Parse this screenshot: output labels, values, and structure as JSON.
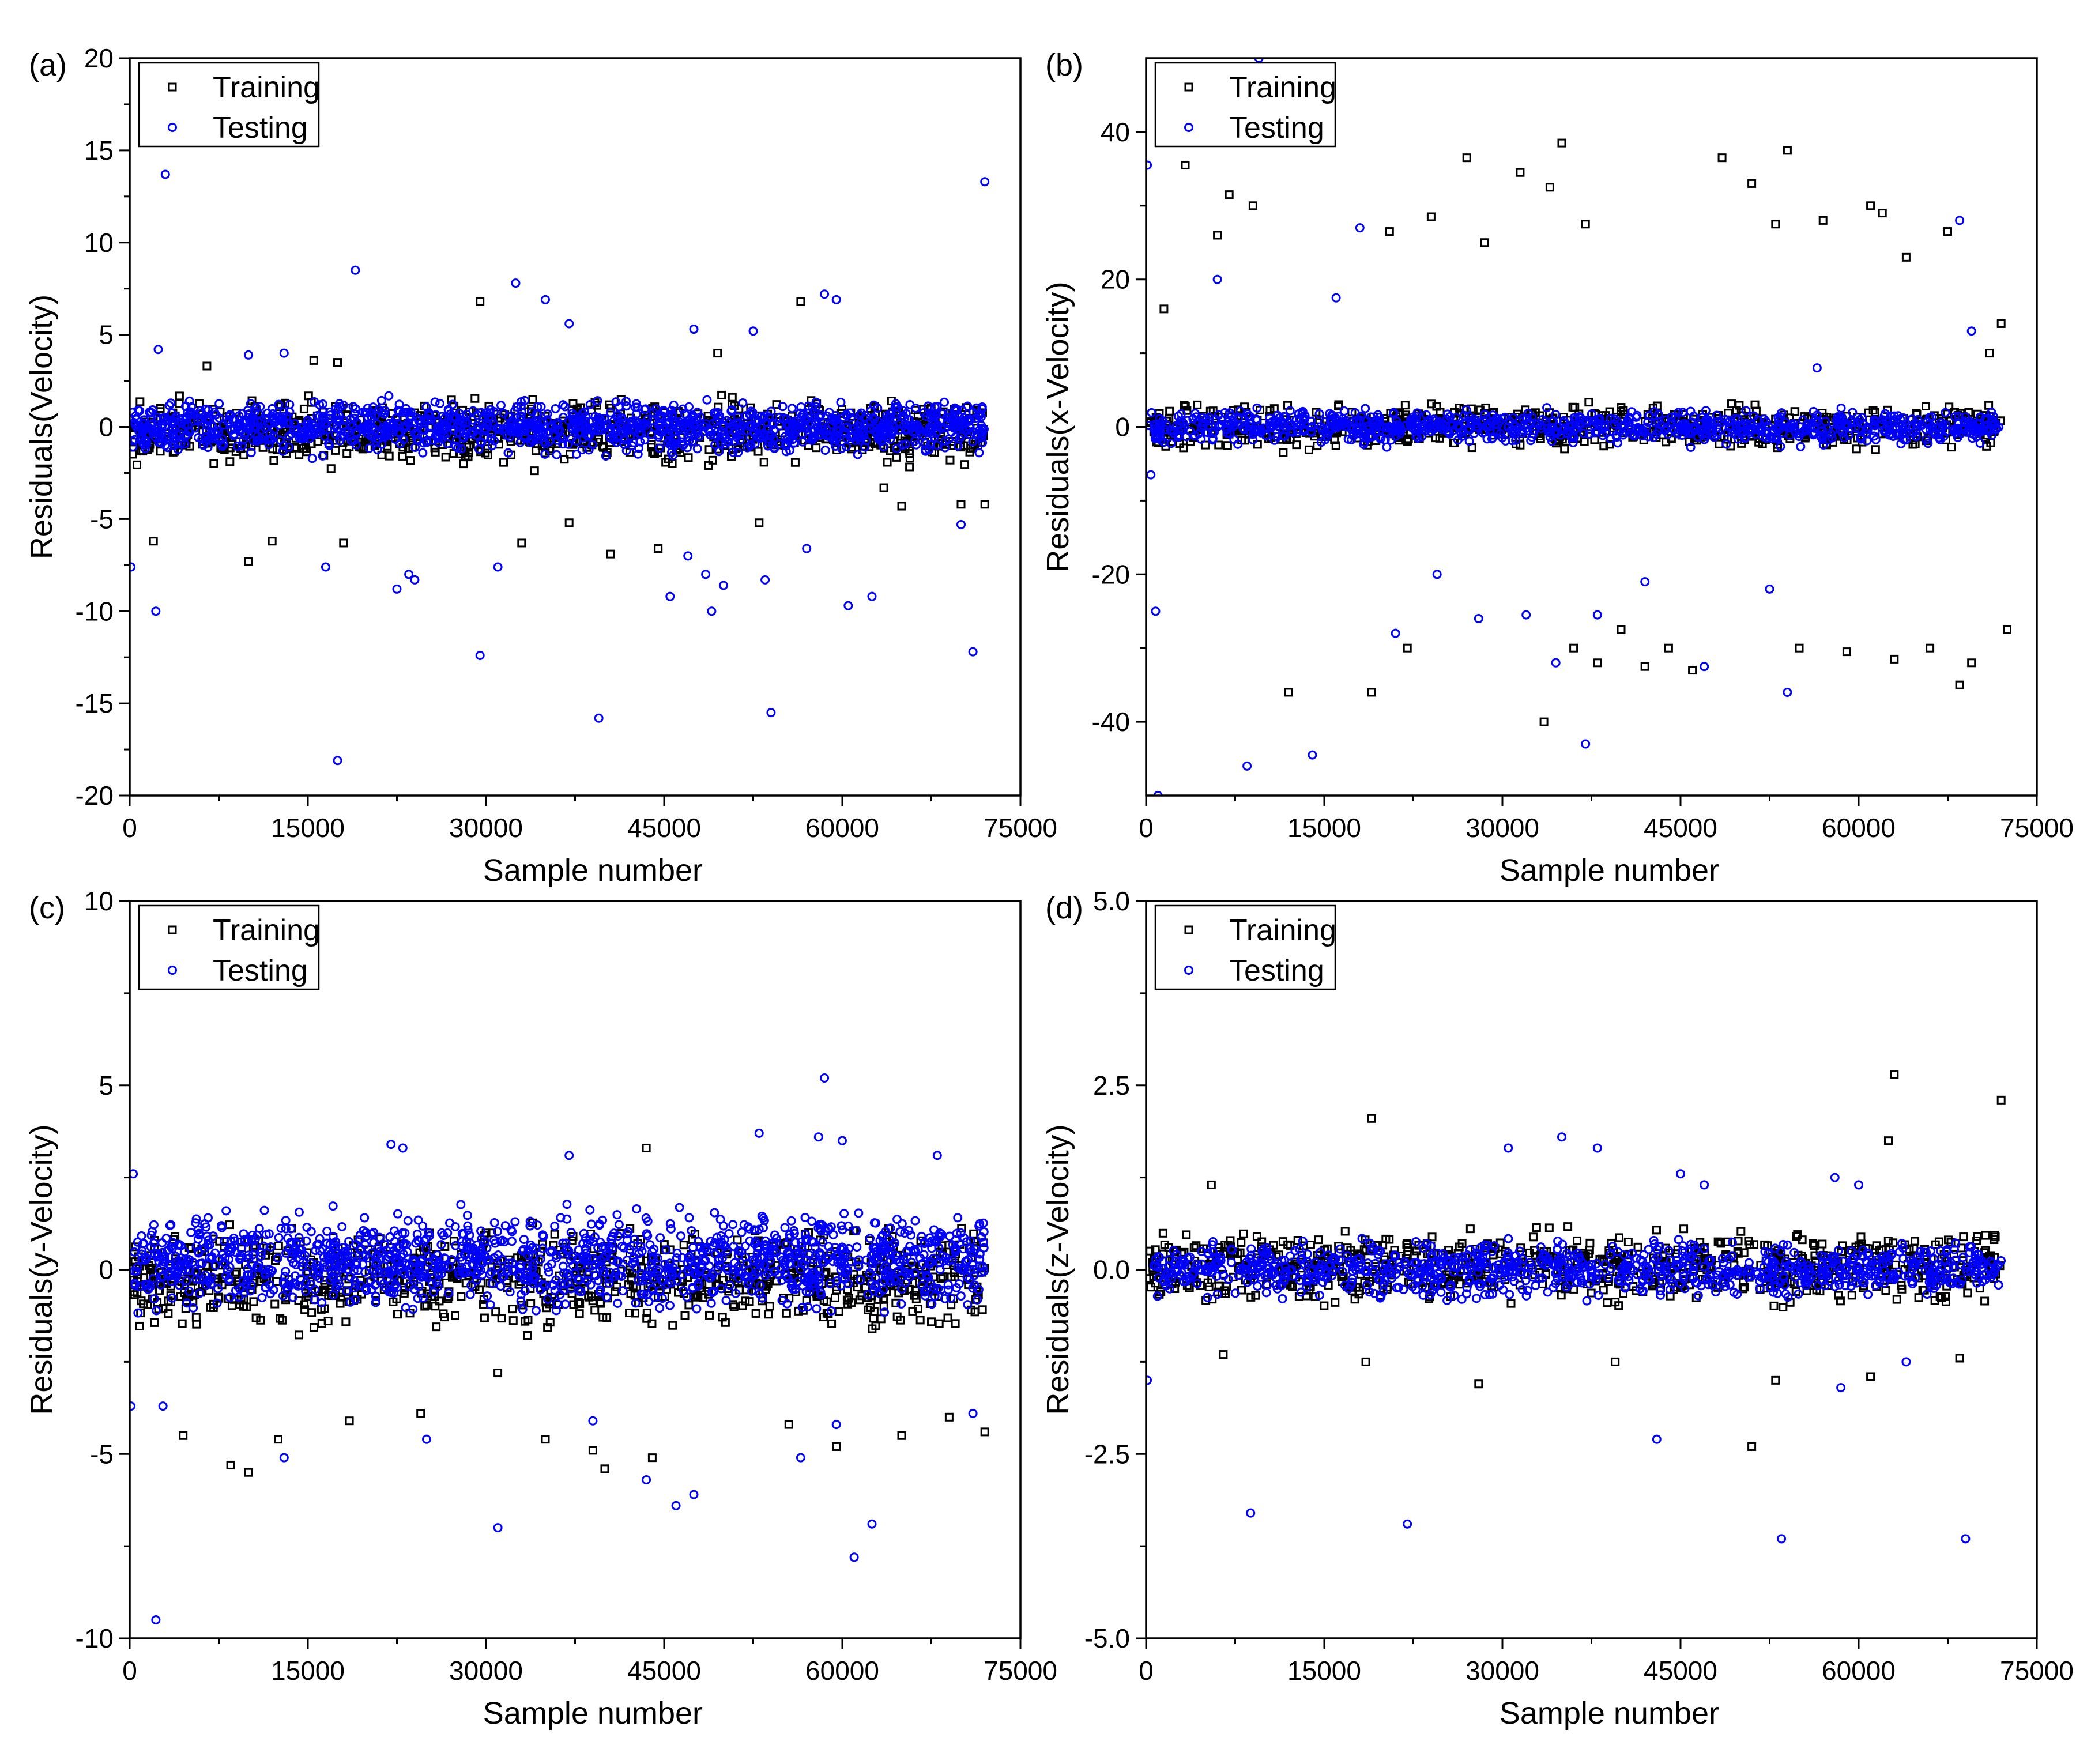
{
  "figure": {
    "marker_colors": {
      "training": "#000000",
      "testing": "#0000ff"
    }
  },
  "chart_data": [
    {
      "panel": "(a)",
      "type": "scatter",
      "xlabel": "Sample number",
      "ylabel": "Residuals(Velocity)",
      "xlim": [
        0,
        75000
      ],
      "ylim": [
        -20,
        20
      ],
      "xticks": [
        "0",
        "15000",
        "30000",
        "45000",
        "60000",
        "75000"
      ],
      "yticks": [
        "-20",
        "-15",
        "-10",
        "-5",
        "0",
        "5",
        "10",
        "15",
        "20"
      ],
      "legend": {
        "placement": "top-left",
        "entries": [
          "Training",
          "Testing"
        ]
      },
      "series": [
        {
          "name": "Training",
          "marker": "square",
          "color": "#000000",
          "band": [
            -2.5,
            2.0
          ],
          "n_band": 900,
          "seed": 11,
          "outliers": [
            [
              2000,
              -6.2
            ],
            [
              6500,
              3.3
            ],
            [
              10000,
              -7.3
            ],
            [
              12000,
              -6.2
            ],
            [
              15500,
              3.6
            ],
            [
              17500,
              3.5
            ],
            [
              18000,
              -6.3
            ],
            [
              29500,
              6.8
            ],
            [
              33000,
              -6.3
            ],
            [
              37000,
              -5.2
            ],
            [
              40500,
              -6.9
            ],
            [
              44500,
              -6.6
            ],
            [
              49500,
              4.0
            ],
            [
              53000,
              -5.2
            ],
            [
              56500,
              6.8
            ],
            [
              63500,
              -3.3
            ],
            [
              65000,
              -4.3
            ],
            [
              70000,
              -4.2
            ],
            [
              72000,
              -4.2
            ]
          ]
        },
        {
          "name": "Testing",
          "marker": "circle",
          "color": "#0000ff",
          "band": [
            -1.8,
            1.8
          ],
          "n_band": 1300,
          "seed": 23,
          "outliers": [
            [
              100,
              -7.6
            ],
            [
              2200,
              -10.0
            ],
            [
              2400,
              4.2
            ],
            [
              3000,
              13.7
            ],
            [
              10000,
              3.9
            ],
            [
              13000,
              4.0
            ],
            [
              16500,
              -7.6
            ],
            [
              17500,
              -18.1
            ],
            [
              19000,
              8.5
            ],
            [
              22500,
              -8.8
            ],
            [
              23500,
              -8.0
            ],
            [
              24000,
              -8.3
            ],
            [
              29500,
              -12.4
            ],
            [
              31000,
              -7.6
            ],
            [
              32500,
              7.8
            ],
            [
              35000,
              6.9
            ],
            [
              37000,
              5.6
            ],
            [
              39500,
              -15.8
            ],
            [
              45500,
              -9.2
            ],
            [
              47000,
              -7.0
            ],
            [
              47500,
              5.3
            ],
            [
              48500,
              -8.0
            ],
            [
              49000,
              -10.0
            ],
            [
              50000,
              -8.6
            ],
            [
              52500,
              5.2
            ],
            [
              53500,
              -8.3
            ],
            [
              54000,
              -15.5
            ],
            [
              57000,
              -6.6
            ],
            [
              58500,
              7.2
            ],
            [
              59500,
              6.9
            ],
            [
              60500,
              -9.7
            ],
            [
              62500,
              -9.2
            ],
            [
              70000,
              -5.3
            ],
            [
              71000,
              -12.2
            ],
            [
              72000,
              13.3
            ]
          ]
        }
      ]
    },
    {
      "panel": "(b)",
      "type": "scatter",
      "xlabel": "Sample number",
      "ylabel": "Residuals(x-Velocity)",
      "xlim": [
        0,
        75000
      ],
      "ylim": [
        -50,
        50
      ],
      "xticks": [
        "0",
        "15000",
        "30000",
        "45000",
        "60000",
        "75000"
      ],
      "yticks": [
        "-40",
        "-20",
        "0",
        "20",
        "40"
      ],
      "legend": {
        "placement": "top-left",
        "entries": [
          "Training",
          "Testing"
        ]
      },
      "series": [
        {
          "name": "Training",
          "marker": "square",
          "color": "#000000",
          "band": [
            -4,
            4
          ],
          "n_band": 700,
          "seed": 37,
          "outliers": [
            [
              1500,
              16
            ],
            [
              3300,
              35.5
            ],
            [
              6000,
              26
            ],
            [
              7000,
              31.5
            ],
            [
              9000,
              30
            ],
            [
              12000,
              -36
            ],
            [
              19000,
              -36
            ],
            [
              20500,
              26.5
            ],
            [
              22000,
              -30
            ],
            [
              24000,
              28.5
            ],
            [
              27000,
              36.5
            ],
            [
              28500,
              25
            ],
            [
              31500,
              34.5
            ],
            [
              33500,
              -40
            ],
            [
              34000,
              32.5
            ],
            [
              35000,
              38.5
            ],
            [
              36000,
              -30
            ],
            [
              37000,
              27.5
            ],
            [
              38000,
              -32
            ],
            [
              40000,
              -27.5
            ],
            [
              42000,
              -32.5
            ],
            [
              44000,
              -30
            ],
            [
              46000,
              -33
            ],
            [
              48500,
              36.5
            ],
            [
              51000,
              33
            ],
            [
              53000,
              27.5
            ],
            [
              54000,
              37.5
            ],
            [
              55000,
              -30
            ],
            [
              57000,
              28
            ],
            [
              59000,
              -30.5
            ],
            [
              61000,
              30
            ],
            [
              62000,
              29
            ],
            [
              63000,
              -31.5
            ],
            [
              64000,
              23
            ],
            [
              66000,
              -30
            ],
            [
              67500,
              26.5
            ],
            [
              68500,
              -35
            ],
            [
              69500,
              -32
            ],
            [
              71000,
              10
            ],
            [
              72000,
              14
            ],
            [
              72500,
              -27.5
            ]
          ]
        },
        {
          "name": "Testing",
          "marker": "circle",
          "color": "#0000ff",
          "band": [
            -3,
            3
          ],
          "n_band": 900,
          "seed": 41,
          "outliers": [
            [
              100,
              35.5
            ],
            [
              400,
              -6.5
            ],
            [
              800,
              -25
            ],
            [
              1000,
              -50
            ],
            [
              6000,
              20
            ],
            [
              8500,
              -46
            ],
            [
              9500,
              50
            ],
            [
              14000,
              -44.5
            ],
            [
              16000,
              17.5
            ],
            [
              18000,
              27
            ],
            [
              21000,
              -28
            ],
            [
              24500,
              -20
            ],
            [
              28000,
              -26
            ],
            [
              32000,
              -25.5
            ],
            [
              34500,
              -32
            ],
            [
              37000,
              -43
            ],
            [
              38000,
              -25.5
            ],
            [
              42000,
              -21
            ],
            [
              47000,
              -32.5
            ],
            [
              52500,
              -22
            ],
            [
              54000,
              -36
            ],
            [
              56500,
              8
            ],
            [
              68500,
              28
            ],
            [
              69500,
              13
            ]
          ]
        }
      ]
    },
    {
      "panel": "(c)",
      "type": "scatter",
      "xlabel": "Sample number",
      "ylabel": "Residuals(y-Velocity)",
      "xlim": [
        0,
        75000
      ],
      "ylim": [
        -10,
        10
      ],
      "xticks": [
        "0",
        "15000",
        "30000",
        "45000",
        "60000",
        "75000"
      ],
      "yticks": [
        "-10",
        "-5",
        "0",
        "5",
        "10"
      ],
      "legend": {
        "placement": "top-left",
        "entries": [
          "Training",
          "Testing"
        ]
      },
      "series": [
        {
          "name": "Training",
          "marker": "square",
          "color": "#000000",
          "band": [
            -2.0,
            1.5
          ],
          "n_band": 900,
          "seed": 53,
          "outliers": [
            [
              4500,
              -4.5
            ],
            [
              8500,
              -5.3
            ],
            [
              10000,
              -5.5
            ],
            [
              12500,
              -4.6
            ],
            [
              18500,
              -4.1
            ],
            [
              24500,
              -3.9
            ],
            [
              31000,
              -2.8
            ],
            [
              35000,
              -4.6
            ],
            [
              39000,
              -4.9
            ],
            [
              40000,
              -5.4
            ],
            [
              43500,
              3.3
            ],
            [
              44000,
              -5.1
            ],
            [
              55500,
              -4.2
            ],
            [
              59500,
              -4.8
            ],
            [
              65000,
              -4.5
            ],
            [
              69000,
              -4.0
            ],
            [
              72000,
              -4.4
            ]
          ]
        },
        {
          "name": "Testing",
          "marker": "circle",
          "color": "#0000ff",
          "band": [
            -1.5,
            2.0
          ],
          "n_band": 1300,
          "seed": 61,
          "outliers": [
            [
              100,
              -3.7
            ],
            [
              300,
              2.6
            ],
            [
              2200,
              -9.5
            ],
            [
              2800,
              -3.7
            ],
            [
              13000,
              -5.1
            ],
            [
              22000,
              3.4
            ],
            [
              23000,
              3.3
            ],
            [
              25000,
              -4.6
            ],
            [
              31000,
              -7.0
            ],
            [
              37000,
              3.1
            ],
            [
              39000,
              -4.1
            ],
            [
              43500,
              -5.7
            ],
            [
              46000,
              -6.4
            ],
            [
              47500,
              -6.1
            ],
            [
              53000,
              3.7
            ],
            [
              56500,
              -5.1
            ],
            [
              58000,
              3.6
            ],
            [
              58500,
              5.2
            ],
            [
              59500,
              -4.2
            ],
            [
              60000,
              3.5
            ],
            [
              61000,
              -7.8
            ],
            [
              62500,
              -6.9
            ],
            [
              68000,
              3.1
            ],
            [
              71000,
              -3.9
            ]
          ]
        }
      ]
    },
    {
      "panel": "(d)",
      "type": "scatter",
      "xlabel": "Sample number",
      "ylabel": "Residuals(z-Velocity)",
      "xlim": [
        0,
        75000
      ],
      "ylim": [
        -5.0,
        5.0
      ],
      "xticks": [
        "0",
        "15000",
        "30000",
        "45000",
        "60000",
        "75000"
      ],
      "yticks": [
        "-5.0",
        "-2.5",
        "0.0",
        "2.5",
        "5.0"
      ],
      "legend": {
        "placement": "top-left",
        "entries": [
          "Training",
          "Testing"
        ]
      },
      "series": [
        {
          "name": "Training",
          "marker": "square",
          "color": "#000000",
          "band": [
            -0.6,
            0.7
          ],
          "n_band": 800,
          "seed": 71,
          "outliers": [
            [
              5500,
              1.15
            ],
            [
              6500,
              -1.15
            ],
            [
              18500,
              -1.25
            ],
            [
              19000,
              2.05
            ],
            [
              28000,
              -1.55
            ],
            [
              39500,
              -1.25
            ],
            [
              51000,
              -2.4
            ],
            [
              53000,
              -1.5
            ],
            [
              61000,
              -1.45
            ],
            [
              62500,
              1.75
            ],
            [
              63000,
              2.65
            ],
            [
              68500,
              -1.2
            ],
            [
              72000,
              2.3
            ]
          ]
        },
        {
          "name": "Testing",
          "marker": "circle",
          "color": "#0000ff",
          "band": [
            -0.5,
            0.5
          ],
          "n_band": 900,
          "seed": 83,
          "outliers": [
            [
              100,
              -1.5
            ],
            [
              8800,
              -3.3
            ],
            [
              22000,
              -3.45
            ],
            [
              30500,
              1.65
            ],
            [
              35000,
              1.8
            ],
            [
              38000,
              1.65
            ],
            [
              43000,
              -2.3
            ],
            [
              45000,
              1.3
            ],
            [
              47000,
              1.15
            ],
            [
              53500,
              -3.65
            ],
            [
              58000,
              1.25
            ],
            [
              58500,
              -1.6
            ],
            [
              60000,
              1.15
            ],
            [
              64000,
              -1.25
            ],
            [
              69000,
              -3.65
            ]
          ]
        }
      ]
    }
  ]
}
